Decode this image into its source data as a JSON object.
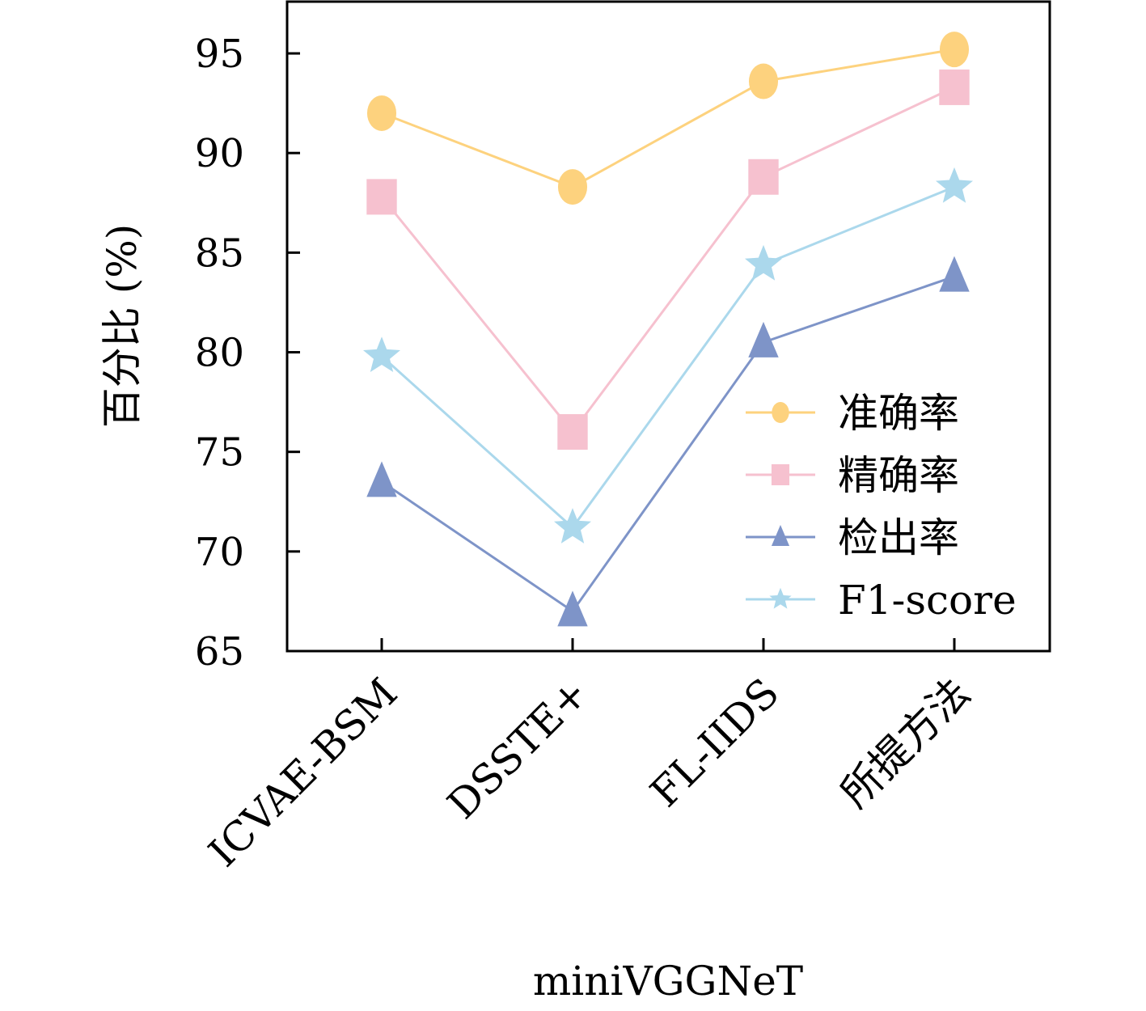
{
  "chart_data": {
    "type": "line",
    "title": "",
    "xlabel": "miniVGGNeT",
    "ylabel": "百分比 (%)",
    "categories": [
      "ICVAE-BSM",
      "DSSTE+",
      "FL-IIDS",
      "所提方法"
    ],
    "ylim": [
      65,
      97.6
    ],
    "yticks": [
      65,
      70,
      75,
      80,
      85,
      90,
      95
    ],
    "grid": false,
    "legend_position": "bottom-right",
    "series": [
      {
        "name": "准确率",
        "marker": "circle",
        "color": "#FDD27E",
        "values": [
          92.0,
          88.3,
          93.6,
          95.2
        ]
      },
      {
        "name": "精确率",
        "marker": "square",
        "color": "#F6C1CF",
        "values": [
          87.8,
          76.0,
          88.8,
          93.3
        ]
      },
      {
        "name": "检出率",
        "marker": "triangle",
        "color": "#7E94C8",
        "values": [
          73.5,
          67.0,
          80.5,
          83.8
        ]
      },
      {
        "name": "F1-score",
        "marker": "star",
        "color": "#ABD8EC",
        "values": [
          79.8,
          71.2,
          84.4,
          88.3
        ]
      }
    ]
  }
}
